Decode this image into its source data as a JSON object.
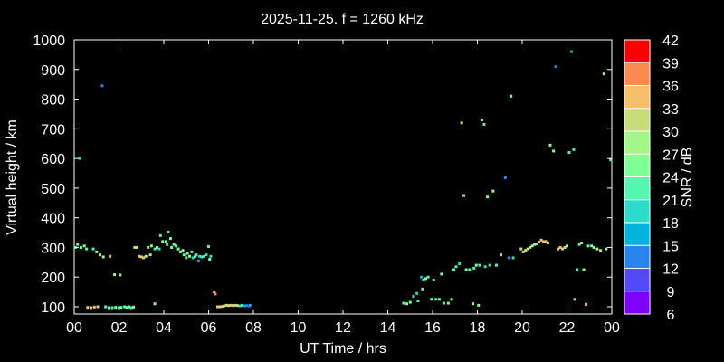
{
  "chart_data": {
    "type": "scatter",
    "title": "2025-11-25. f = 1260 kHz",
    "xlabel": "UT Time / hrs",
    "ylabel": "Virtual height / km",
    "colorbar_label": "SNR / dB",
    "xlim": [
      0,
      24
    ],
    "ylim": [
      80,
      1000
    ],
    "xticks": [
      "00",
      "02",
      "04",
      "06",
      "08",
      "10",
      "12",
      "14",
      "16",
      "18",
      "20",
      "22",
      "00"
    ],
    "yticks": [
      "100",
      "200",
      "300",
      "400",
      "500",
      "600",
      "700",
      "800",
      "900",
      "1000"
    ],
    "grid": false,
    "colorbar": {
      "range": [
        6,
        42
      ],
      "ticks": [
        "6",
        "9",
        "12",
        "15",
        "18",
        "21",
        "24",
        "27",
        "30",
        "33",
        "36",
        "39",
        "42"
      ],
      "colors": [
        "#7f00ff",
        "#5448fb",
        "#2a84f0",
        "#00b4df",
        "#2adcc9",
        "#54f6b0",
        "#80ff96",
        "#a4f68a",
        "#c8dc78",
        "#f5c06a",
        "#ff8a50",
        "#ff4d2b",
        "#ff0000"
      ]
    },
    "points": [
      {
        "x": 0.05,
        "y": 300,
        "snr": 22
      },
      {
        "x": 0.15,
        "y": 310,
        "snr": 20
      },
      {
        "x": 0.25,
        "y": 600,
        "snr": 19
      },
      {
        "x": 0.3,
        "y": 300,
        "snr": 24
      },
      {
        "x": 0.45,
        "y": 305,
        "snr": 23
      },
      {
        "x": 0.55,
        "y": 295,
        "snr": 21
      },
      {
        "x": 0.6,
        "y": 98,
        "snr": 33
      },
      {
        "x": 0.75,
        "y": 97,
        "snr": 34
      },
      {
        "x": 0.9,
        "y": 99,
        "snr": 32
      },
      {
        "x": 0.85,
        "y": 295,
        "snr": 20
      },
      {
        "x": 1.0,
        "y": 285,
        "snr": 25
      },
      {
        "x": 1.05,
        "y": 100,
        "snr": 30
      },
      {
        "x": 1.15,
        "y": 275,
        "snr": 30
      },
      {
        "x": 1.25,
        "y": 845,
        "snr": 11
      },
      {
        "x": 1.3,
        "y": 268,
        "snr": 26
      },
      {
        "x": 1.4,
        "y": 100,
        "snr": 22
      },
      {
        "x": 1.55,
        "y": 97,
        "snr": 24
      },
      {
        "x": 1.6,
        "y": 270,
        "snr": 33
      },
      {
        "x": 1.7,
        "y": 97,
        "snr": 22
      },
      {
        "x": 1.8,
        "y": 208,
        "snr": 27
      },
      {
        "x": 1.85,
        "y": 98,
        "snr": 24
      },
      {
        "x": 2.0,
        "y": 97,
        "snr": 23
      },
      {
        "x": 2.05,
        "y": 207,
        "snr": 26
      },
      {
        "x": 2.1,
        "y": 98,
        "snr": 22
      },
      {
        "x": 2.25,
        "y": 100,
        "snr": 25
      },
      {
        "x": 2.35,
        "y": 98,
        "snr": 21
      },
      {
        "x": 2.45,
        "y": 100,
        "snr": 24
      },
      {
        "x": 2.55,
        "y": 97,
        "snr": 22
      },
      {
        "x": 2.65,
        "y": 99,
        "snr": 26
      },
      {
        "x": 2.7,
        "y": 300,
        "snr": 31
      },
      {
        "x": 2.8,
        "y": 300,
        "snr": 28
      },
      {
        "x": 2.9,
        "y": 270,
        "snr": 33
      },
      {
        "x": 3.0,
        "y": 268,
        "snr": 30
      },
      {
        "x": 3.1,
        "y": 265,
        "snr": 32
      },
      {
        "x": 3.2,
        "y": 270,
        "snr": 28
      },
      {
        "x": 3.3,
        "y": 300,
        "snr": 25
      },
      {
        "x": 3.4,
        "y": 275,
        "snr": 27
      },
      {
        "x": 3.45,
        "y": 305,
        "snr": 24
      },
      {
        "x": 3.6,
        "y": 110,
        "snr": 25
      },
      {
        "x": 3.6,
        "y": 295,
        "snr": 22
      },
      {
        "x": 3.7,
        "y": 300,
        "snr": 26
      },
      {
        "x": 3.8,
        "y": 295,
        "snr": 18
      },
      {
        "x": 3.85,
        "y": 340,
        "snr": 20
      },
      {
        "x": 3.95,
        "y": 320,
        "snr": 23
      },
      {
        "x": 4.1,
        "y": 320,
        "snr": 24
      },
      {
        "x": 4.15,
        "y": 310,
        "snr": 21
      },
      {
        "x": 4.2,
        "y": 352,
        "snr": 22
      },
      {
        "x": 4.3,
        "y": 330,
        "snr": 24
      },
      {
        "x": 4.35,
        "y": 300,
        "snr": 25
      },
      {
        "x": 4.45,
        "y": 310,
        "snr": 23
      },
      {
        "x": 4.55,
        "y": 305,
        "snr": 22
      },
      {
        "x": 4.65,
        "y": 295,
        "snr": 24
      },
      {
        "x": 4.75,
        "y": 285,
        "snr": 25
      },
      {
        "x": 4.85,
        "y": 290,
        "snr": 24
      },
      {
        "x": 4.9,
        "y": 275,
        "snr": 22
      },
      {
        "x": 5.0,
        "y": 265,
        "snr": 20
      },
      {
        "x": 5.05,
        "y": 280,
        "snr": 23
      },
      {
        "x": 5.15,
        "y": 270,
        "snr": 25
      },
      {
        "x": 5.25,
        "y": 285,
        "snr": 22
      },
      {
        "x": 5.3,
        "y": 265,
        "snr": 18
      },
      {
        "x": 5.4,
        "y": 270,
        "snr": 24
      },
      {
        "x": 5.45,
        "y": 275,
        "snr": 21
      },
      {
        "x": 5.55,
        "y": 255,
        "snr": 11
      },
      {
        "x": 5.6,
        "y": 270,
        "snr": 19
      },
      {
        "x": 5.7,
        "y": 268,
        "snr": 22
      },
      {
        "x": 5.8,
        "y": 270,
        "snr": 20
      },
      {
        "x": 5.9,
        "y": 275,
        "snr": 17
      },
      {
        "x": 6.0,
        "y": 303,
        "snr": 22
      },
      {
        "x": 6.05,
        "y": 260,
        "snr": 23
      },
      {
        "x": 6.1,
        "y": 270,
        "snr": 18
      },
      {
        "x": 6.25,
        "y": 150,
        "snr": 33
      },
      {
        "x": 6.3,
        "y": 143,
        "snr": 36
      },
      {
        "x": 6.4,
        "y": 100,
        "snr": 32
      },
      {
        "x": 6.5,
        "y": 100,
        "snr": 30
      },
      {
        "x": 6.6,
        "y": 101,
        "snr": 33
      },
      {
        "x": 6.7,
        "y": 103,
        "snr": 32
      },
      {
        "x": 6.8,
        "y": 105,
        "snr": 30
      },
      {
        "x": 6.9,
        "y": 104,
        "snr": 28
      },
      {
        "x": 7.0,
        "y": 105,
        "snr": 32
      },
      {
        "x": 7.1,
        "y": 104,
        "snr": 30
      },
      {
        "x": 7.2,
        "y": 105,
        "snr": 29
      },
      {
        "x": 7.3,
        "y": 104,
        "snr": 31
      },
      {
        "x": 7.4,
        "y": 103,
        "snr": 17
      },
      {
        "x": 7.5,
        "y": 105,
        "snr": 20
      },
      {
        "x": 7.6,
        "y": 103,
        "snr": 15
      },
      {
        "x": 7.7,
        "y": 104,
        "snr": 12
      },
      {
        "x": 7.8,
        "y": 102,
        "snr": 10
      },
      {
        "x": 7.85,
        "y": 105,
        "snr": 14
      },
      {
        "x": 14.7,
        "y": 112,
        "snr": 22
      },
      {
        "x": 14.85,
        "y": 110,
        "snr": 24
      },
      {
        "x": 15.0,
        "y": 115,
        "snr": 23
      },
      {
        "x": 15.15,
        "y": 135,
        "snr": 19
      },
      {
        "x": 15.3,
        "y": 145,
        "snr": 17
      },
      {
        "x": 15.35,
        "y": 120,
        "snr": 20
      },
      {
        "x": 15.5,
        "y": 200,
        "snr": 16
      },
      {
        "x": 15.55,
        "y": 160,
        "snr": 22
      },
      {
        "x": 15.6,
        "y": 190,
        "snr": 33
      },
      {
        "x": 15.7,
        "y": 195,
        "snr": 24
      },
      {
        "x": 15.8,
        "y": 200,
        "snr": 22
      },
      {
        "x": 15.95,
        "y": 125,
        "snr": 23
      },
      {
        "x": 16.05,
        "y": 190,
        "snr": 21
      },
      {
        "x": 16.15,
        "y": 125,
        "snr": 22
      },
      {
        "x": 16.3,
        "y": 125,
        "snr": 24
      },
      {
        "x": 16.4,
        "y": 210,
        "snr": 23
      },
      {
        "x": 16.5,
        "y": 112,
        "snr": 22
      },
      {
        "x": 16.7,
        "y": 112,
        "snr": 24
      },
      {
        "x": 16.85,
        "y": 125,
        "snr": 25
      },
      {
        "x": 16.95,
        "y": 225,
        "snr": 22
      },
      {
        "x": 17.05,
        "y": 235,
        "snr": 20
      },
      {
        "x": 17.2,
        "y": 245,
        "snr": 17
      },
      {
        "x": 17.3,
        "y": 720,
        "snr": 29
      },
      {
        "x": 17.4,
        "y": 475,
        "snr": 26
      },
      {
        "x": 17.5,
        "y": 225,
        "snr": 24
      },
      {
        "x": 17.65,
        "y": 225,
        "snr": 22
      },
      {
        "x": 17.8,
        "y": 110,
        "snr": 25
      },
      {
        "x": 17.85,
        "y": 230,
        "snr": 22
      },
      {
        "x": 17.95,
        "y": 240,
        "snr": 24
      },
      {
        "x": 18.05,
        "y": 105,
        "snr": 23
      },
      {
        "x": 18.1,
        "y": 240,
        "snr": 20
      },
      {
        "x": 18.2,
        "y": 730,
        "snr": 25
      },
      {
        "x": 18.3,
        "y": 715,
        "snr": 22
      },
      {
        "x": 18.35,
        "y": 235,
        "snr": 18
      },
      {
        "x": 18.45,
        "y": 470,
        "snr": 23
      },
      {
        "x": 18.55,
        "y": 240,
        "snr": 19
      },
      {
        "x": 18.7,
        "y": 490,
        "snr": 28
      },
      {
        "x": 18.85,
        "y": 240,
        "snr": 21
      },
      {
        "x": 19.05,
        "y": 275,
        "snr": 29
      },
      {
        "x": 19.25,
        "y": 535,
        "snr": 12
      },
      {
        "x": 19.4,
        "y": 265,
        "snr": 13
      },
      {
        "x": 19.5,
        "y": 810,
        "snr": 24
      },
      {
        "x": 19.6,
        "y": 265,
        "snr": 18
      },
      {
        "x": 19.95,
        "y": 295,
        "snr": 30
      },
      {
        "x": 20.05,
        "y": 285,
        "snr": 29
      },
      {
        "x": 20.15,
        "y": 290,
        "snr": 28
      },
      {
        "x": 20.25,
        "y": 295,
        "snr": 27
      },
      {
        "x": 20.35,
        "y": 300,
        "snr": 26
      },
      {
        "x": 20.45,
        "y": 305,
        "snr": 28
      },
      {
        "x": 20.55,
        "y": 310,
        "snr": 26
      },
      {
        "x": 20.65,
        "y": 312,
        "snr": 25
      },
      {
        "x": 20.75,
        "y": 318,
        "snr": 30
      },
      {
        "x": 20.85,
        "y": 325,
        "snr": 34
      },
      {
        "x": 20.95,
        "y": 320,
        "snr": 33
      },
      {
        "x": 21.05,
        "y": 320,
        "snr": 32
      },
      {
        "x": 21.15,
        "y": 315,
        "snr": 29
      },
      {
        "x": 21.25,
        "y": 645,
        "snr": 24
      },
      {
        "x": 21.4,
        "y": 625,
        "snr": 25
      },
      {
        "x": 21.5,
        "y": 910,
        "snr": 13
      },
      {
        "x": 21.6,
        "y": 295,
        "snr": 33
      },
      {
        "x": 21.7,
        "y": 300,
        "snr": 30
      },
      {
        "x": 21.8,
        "y": 295,
        "snr": 32
      },
      {
        "x": 21.9,
        "y": 300,
        "snr": 29
      },
      {
        "x": 22.0,
        "y": 305,
        "snr": 28
      },
      {
        "x": 22.1,
        "y": 620,
        "snr": 22
      },
      {
        "x": 22.2,
        "y": 960,
        "snr": 14
      },
      {
        "x": 22.3,
        "y": 630,
        "snr": 20
      },
      {
        "x": 22.35,
        "y": 125,
        "snr": 24
      },
      {
        "x": 22.45,
        "y": 225,
        "snr": 22
      },
      {
        "x": 22.55,
        "y": 310,
        "snr": 20
      },
      {
        "x": 22.65,
        "y": 315,
        "snr": 24
      },
      {
        "x": 22.75,
        "y": 225,
        "snr": 26
      },
      {
        "x": 22.85,
        "y": 108,
        "snr": 33
      },
      {
        "x": 22.95,
        "y": 305,
        "snr": 22
      },
      {
        "x": 23.1,
        "y": 305,
        "snr": 24
      },
      {
        "x": 23.2,
        "y": 300,
        "snr": 25
      },
      {
        "x": 23.35,
        "y": 295,
        "snr": 27
      },
      {
        "x": 23.5,
        "y": 290,
        "snr": 26
      },
      {
        "x": 23.65,
        "y": 885,
        "snr": 26
      },
      {
        "x": 23.75,
        "y": 295,
        "snr": 24
      },
      {
        "x": 23.95,
        "y": 595,
        "snr": 22
      }
    ]
  }
}
